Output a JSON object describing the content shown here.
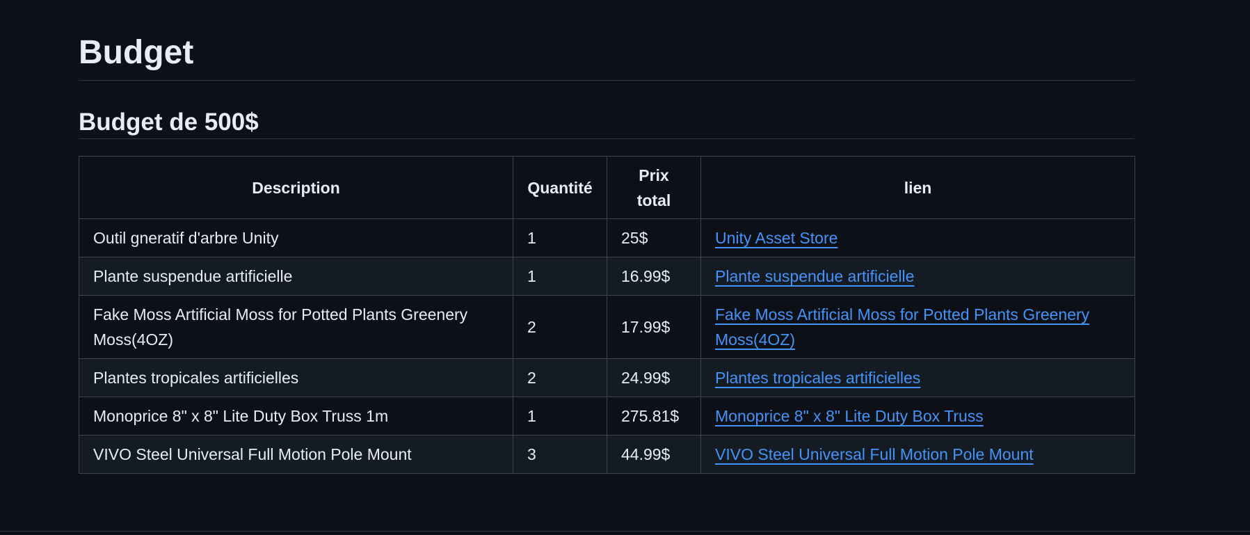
{
  "page": {
    "title": "Budget",
    "subtitle": "Budget de 500$"
  },
  "table": {
    "headers": {
      "description": "Description",
      "quantity": "Quantité",
      "price_line1": "Prix",
      "price_line2": "total",
      "link": "lien"
    },
    "rows": [
      {
        "description": "Outil gneratif d'arbre Unity",
        "quantity": "1",
        "price": "25$",
        "link": "Unity Asset Store"
      },
      {
        "description": "Plante suspendue artificielle",
        "quantity": "1",
        "price": "16.99$",
        "link": "Plante suspendue artificielle"
      },
      {
        "description": "Fake Moss Artificial Moss for Potted Plants Greenery Moss(4OZ)",
        "quantity": "2",
        "price": "17.99$",
        "link": "Fake Moss Artificial Moss for Potted Plants Greenery Moss(4OZ)"
      },
      {
        "description": "Plantes tropicales artificielles",
        "quantity": "2",
        "price": "24.99$",
        "link": "Plantes tropicales artificielles"
      },
      {
        "description": "Monoprice 8\" x 8\" Lite Duty Box Truss 1m",
        "quantity": "1",
        "price": "275.81$",
        "link": "Monoprice 8\" x 8\" Lite Duty Box Truss"
      },
      {
        "description": "VIVO Steel Universal Full Motion Pole Mount",
        "quantity": "3",
        "price": "44.99$",
        "link": "VIVO Steel Universal Full Motion Pole Mount"
      }
    ]
  },
  "colors": {
    "background": "#0d1117",
    "text": "#e6edf3",
    "link": "#4493f8",
    "border": "#3d444d",
    "stripe": "#151b23"
  }
}
